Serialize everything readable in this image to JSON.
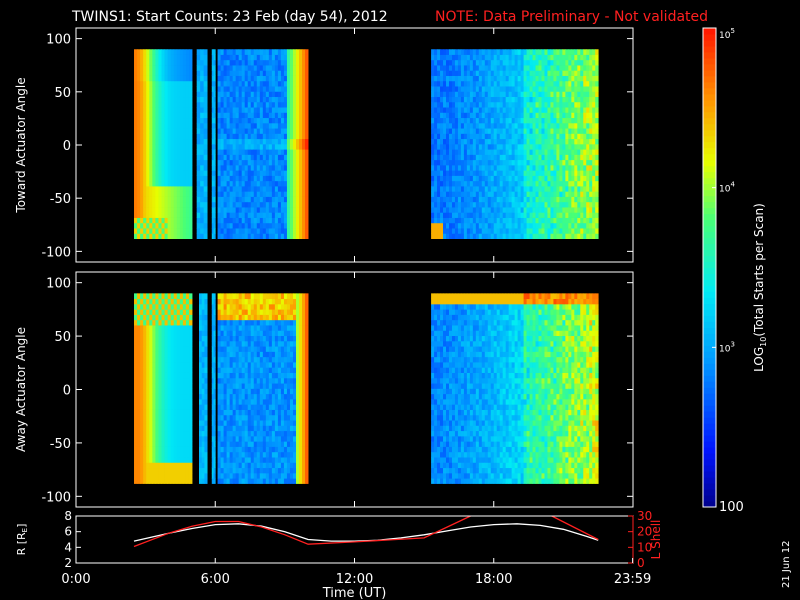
{
  "title": {
    "main": "TWINS1: Start Counts: 23 Feb (day  54), 2012",
    "note": "NOTE: Data Preliminary - Not validated",
    "note_color": "#ff2020"
  },
  "stamp": "21 Jun 12",
  "colorbar": {
    "label": "LOG10(Total Starts per Scan)",
    "label_pre": "LOG",
    "label_sub": "10",
    "label_post": "(Total Starts per Scan)",
    "ticks": [
      {
        "v": 100,
        "label": "100"
      },
      {
        "v": 1000,
        "label": "10",
        "sup": "3"
      },
      {
        "v": 10000,
        "label": "10",
        "sup": "4"
      },
      {
        "v": 100000,
        "label": "10",
        "sup": "5"
      }
    ],
    "range": [
      100,
      100000
    ],
    "scale": "log"
  },
  "chart_data": [
    {
      "type": "heatmap",
      "name": "toward",
      "ylabel": "Toward Actuator Angle",
      "ylim": [
        -110,
        110
      ],
      "yticks": [
        100,
        50,
        0,
        -50,
        -100
      ],
      "xlim": [
        0,
        24
      ],
      "angle_range": [
        -88,
        90
      ],
      "segments": [
        {
          "t0": 2.5,
          "t1": 5.0,
          "profile": "early_a"
        },
        {
          "t0": 5.2,
          "t1": 5.65,
          "profile": "mid_blue"
        },
        {
          "t0": 5.85,
          "t1": 6.0,
          "profile": "mid_blue"
        },
        {
          "t0": 6.1,
          "t1": 10.0,
          "profile": "main_a"
        },
        {
          "t0": 15.3,
          "t1": 22.5,
          "profile": "late_a"
        }
      ]
    },
    {
      "type": "heatmap",
      "name": "away",
      "ylabel": "Away Actuator Angle",
      "ylim": [
        -110,
        110
      ],
      "yticks": [
        100,
        50,
        0,
        -50,
        -100
      ],
      "xlim": [
        0,
        24
      ],
      "angle_range": [
        -88,
        90
      ],
      "segments": [
        {
          "t0": 2.5,
          "t1": 5.0,
          "profile": "early_b"
        },
        {
          "t0": 5.3,
          "t1": 5.65,
          "profile": "mid_blue"
        },
        {
          "t0": 5.85,
          "t1": 6.0,
          "profile": "mid_blue"
        },
        {
          "t0": 6.1,
          "t1": 10.0,
          "profile": "main_b"
        },
        {
          "t0": 15.3,
          "t1": 22.5,
          "profile": "late_b"
        }
      ]
    },
    {
      "type": "line",
      "name": "orbit",
      "xlabel": "Time (UT)",
      "xlim": [
        0,
        24
      ],
      "xticks": [
        {
          "v": 0,
          "label": "0:00"
        },
        {
          "v": 6,
          "label": "6:00"
        },
        {
          "v": 12,
          "label": "12:00"
        },
        {
          "v": 18,
          "label": "18:00"
        },
        {
          "v": 23.983,
          "label": "23:59"
        }
      ],
      "left_axis": {
        "label_pre": "R [R",
        "label_sub": "E",
        "label_post": "]",
        "ylim": [
          2,
          8
        ],
        "ticks": [
          2,
          4,
          6,
          8
        ],
        "color": "#ffffff"
      },
      "right_axis": {
        "label": "L Shell",
        "ylim": [
          0,
          30
        ],
        "ticks": [
          0,
          10,
          20,
          30
        ],
        "color": "#ff2020"
      },
      "series": [
        {
          "axis": "left",
          "color": "#ffffff",
          "x": [
            2.5,
            4,
            5,
            6,
            7,
            8,
            9,
            10,
            11,
            12,
            13,
            14,
            15,
            16,
            17,
            18,
            19,
            20,
            21,
            22,
            22.5
          ],
          "y": [
            4.8,
            5.8,
            6.4,
            6.9,
            7.0,
            6.7,
            6.0,
            5.0,
            4.8,
            4.8,
            4.9,
            5.2,
            5.6,
            6.1,
            6.6,
            6.9,
            7.0,
            6.8,
            6.3,
            5.4,
            4.9
          ]
        },
        {
          "axis": "right",
          "color": "#ff2020",
          "x": [
            2.5,
            4,
            5,
            6,
            7,
            8,
            9,
            10,
            12,
            15,
            16,
            17,
            17.8,
            20.5,
            22.5
          ],
          "y": [
            10.5,
            19,
            23.5,
            26.5,
            26.5,
            23,
            18,
            12,
            13.5,
            16,
            23,
            30,
            38,
            30,
            15
          ]
        }
      ]
    }
  ]
}
